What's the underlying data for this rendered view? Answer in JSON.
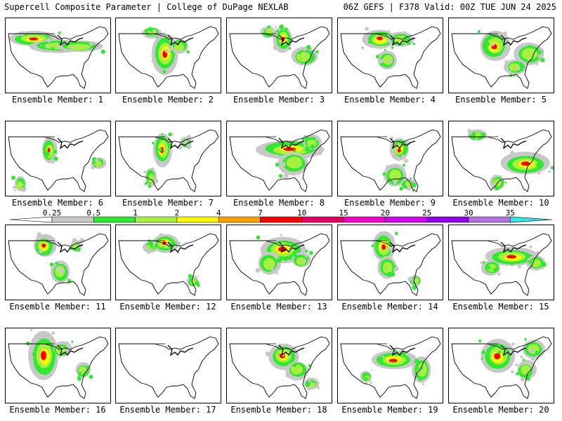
{
  "header": {
    "title_left": "Supercell Composite Parameter | College of DuPage NEXLAB",
    "title_right": "06Z GEFS | F378 Valid: 00Z TUE JUN 24 2025"
  },
  "colorbar": {
    "tick_labels": [
      "0.25",
      "0.5",
      "1",
      "2",
      "4",
      "7",
      "10",
      "15",
      "20",
      "25",
      "30",
      "35"
    ],
    "colors": [
      "#c8c8c8",
      "#2fe82f",
      "#a8f040",
      "#f8f800",
      "#f8a000",
      "#f80000",
      "#e00060",
      "#f000c8",
      "#d000f0",
      "#9000f0",
      "#b070e0",
      "#30e8e8"
    ]
  },
  "panels": [
    {
      "label": "Ensemble Member: 1"
    },
    {
      "label": "Ensemble Member: 2"
    },
    {
      "label": "Ensemble Member: 3"
    },
    {
      "label": "Ensemble Member: 4"
    },
    {
      "label": "Ensemble Member: 5"
    },
    {
      "label": "Ensemble Member: 6"
    },
    {
      "label": "Ensemble Member: 7"
    },
    {
      "label": "Ensemble Member: 8"
    },
    {
      "label": "Ensemble Member: 9"
    },
    {
      "label": "Ensemble Member: 10"
    },
    {
      "label": "Ensemble Member: 11"
    },
    {
      "label": "Ensemble Member: 12"
    },
    {
      "label": "Ensemble Member: 13"
    },
    {
      "label": "Ensemble Member: 14"
    },
    {
      "label": "Ensemble Member: 15"
    },
    {
      "label": "Ensemble Member: 16"
    },
    {
      "label": "Ensemble Member: 17"
    },
    {
      "label": "Ensemble Member: 18"
    },
    {
      "label": "Ensemble Member: 19"
    },
    {
      "label": "Ensemble Member: 20"
    }
  ]
}
